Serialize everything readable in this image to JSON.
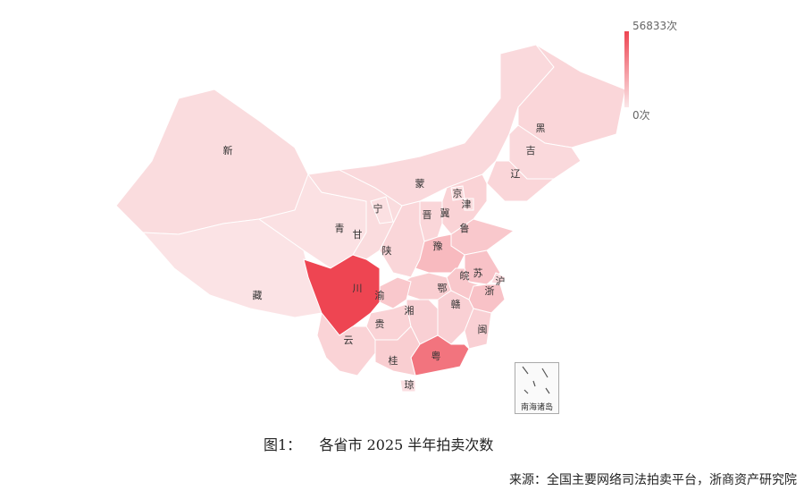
{
  "chart_data": {
    "type": "choropleth",
    "unit": "次",
    "range": [
      0,
      56833
    ],
    "color_low": "#fbe4e6",
    "color_high": "#ee4552",
    "legend": {
      "max_label": "56833次",
      "min_label": "0次",
      "placement": "top-right"
    },
    "regions": [
      {
        "name": "新",
        "value": 3000
      },
      {
        "name": "藏",
        "value": 500
      },
      {
        "name": "青",
        "value": 1000
      },
      {
        "name": "甘",
        "value": 3000
      },
      {
        "name": "宁",
        "value": 1500
      },
      {
        "name": "蒙",
        "value": 4000
      },
      {
        "name": "黑",
        "value": 5000
      },
      {
        "name": "吉",
        "value": 4000
      },
      {
        "name": "辽",
        "value": 5000
      },
      {
        "name": "冀",
        "value": 6000
      },
      {
        "name": "京",
        "value": 3000
      },
      {
        "name": "津",
        "value": 3000
      },
      {
        "name": "晋",
        "value": 5000
      },
      {
        "name": "陕",
        "value": 5000
      },
      {
        "name": "鲁",
        "value": 10000
      },
      {
        "name": "豫",
        "value": 15000
      },
      {
        "name": "苏",
        "value": 12000
      },
      {
        "name": "沪",
        "value": 4000
      },
      {
        "name": "皖",
        "value": 10000
      },
      {
        "name": "浙",
        "value": 12000
      },
      {
        "name": "鄂",
        "value": 8000
      },
      {
        "name": "渝",
        "value": 10000
      },
      {
        "name": "川",
        "value": 56833
      },
      {
        "name": "贵",
        "value": 6000
      },
      {
        "name": "云",
        "value": 6000
      },
      {
        "name": "湘",
        "value": 7000
      },
      {
        "name": "赣",
        "value": 7000
      },
      {
        "name": "闽",
        "value": 7000
      },
      {
        "name": "粤",
        "value": 40000
      },
      {
        "name": "桂",
        "value": 8000
      },
      {
        "name": "琼",
        "value": 2000
      }
    ]
  },
  "inset_label": "南海诸岛",
  "caption": "图1：    各省市 2025 半年拍卖次数",
  "source": "来源：全国主要网络司法拍卖平台，浙商资产研究院"
}
